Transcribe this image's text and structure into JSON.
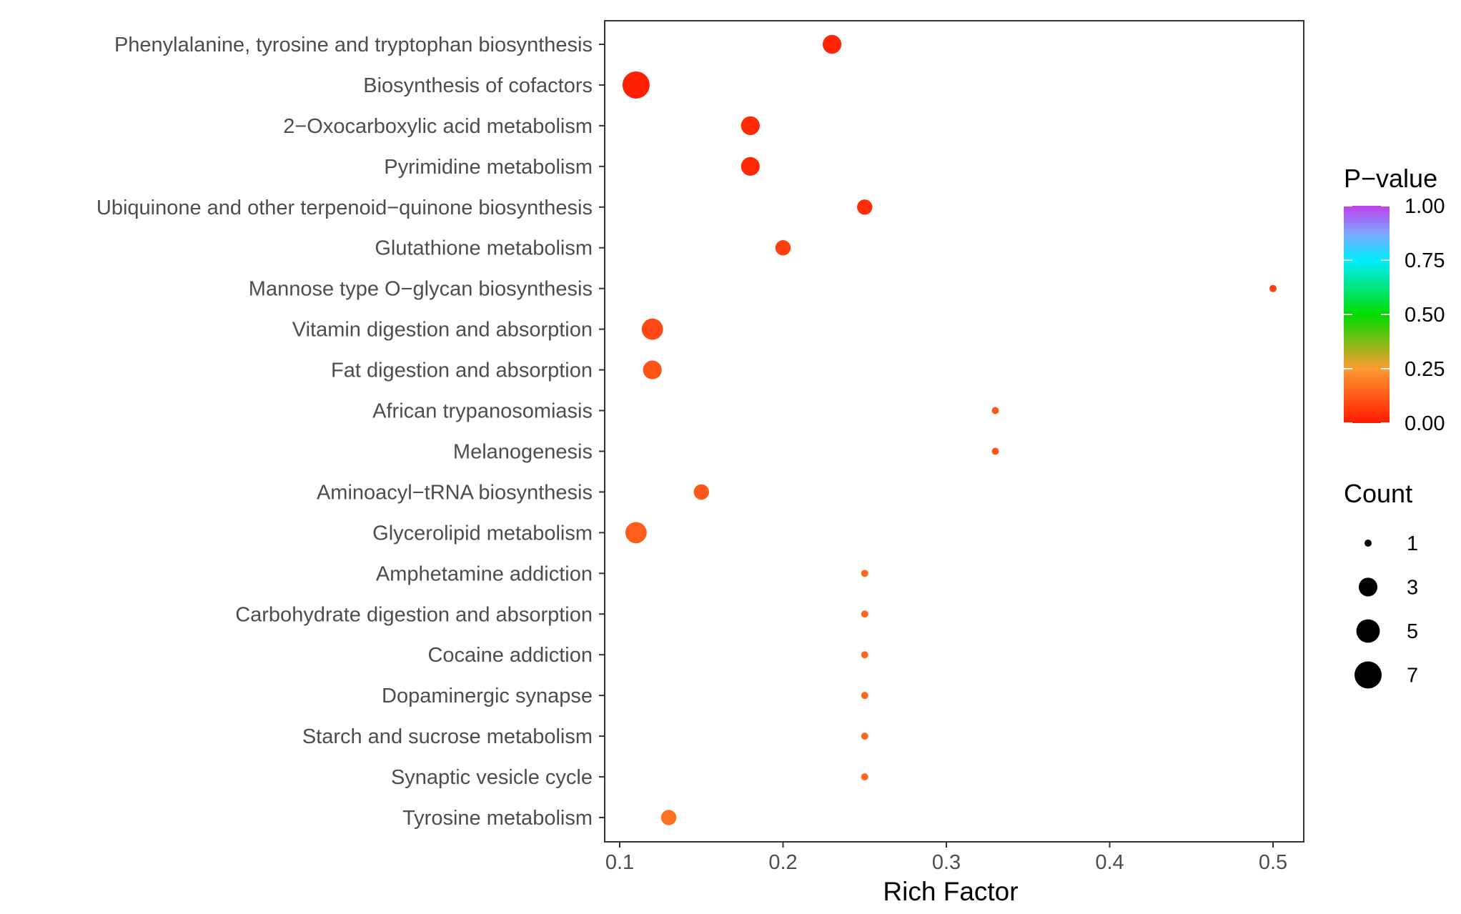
{
  "chart_data": {
    "type": "scatter",
    "title": "",
    "xlabel": "Rich Factor",
    "ylabel": "",
    "xlim": [
      0.092,
      0.52
    ],
    "xticks": [
      0.1,
      0.2,
      0.3,
      0.4,
      0.5
    ],
    "xtick_labels": [
      "0.1",
      "0.2",
      "0.3",
      "0.4",
      "0.5"
    ],
    "grid": false,
    "points": [
      {
        "pathway": "Phenylalanine, tyrosine and tryptophan biosynthesis",
        "rich_factor": 0.23,
        "count": 3,
        "p_value": 0.02
      },
      {
        "pathway": "Biosynthesis of cofactors",
        "rich_factor": 0.11,
        "count": 7,
        "p_value": 0.01
      },
      {
        "pathway": "2−Oxocarboxylic acid metabolism",
        "rich_factor": 0.18,
        "count": 3,
        "p_value": 0.03
      },
      {
        "pathway": "Pyrimidine metabolism",
        "rich_factor": 0.18,
        "count": 3,
        "p_value": 0.03
      },
      {
        "pathway": "Ubiquinone and other terpenoid−quinone biosynthesis",
        "rich_factor": 0.25,
        "count": 2,
        "p_value": 0.04
      },
      {
        "pathway": "Glutathione metabolism",
        "rich_factor": 0.2,
        "count": 2,
        "p_value": 0.07
      },
      {
        "pathway": "Mannose type O−glycan biosynthesis",
        "rich_factor": 0.5,
        "count": 1,
        "p_value": 0.08
      },
      {
        "pathway": "Vitamin digestion and absorption",
        "rich_factor": 0.12,
        "count": 4,
        "p_value": 0.09
      },
      {
        "pathway": "Fat digestion and absorption",
        "rich_factor": 0.12,
        "count": 3,
        "p_value": 0.11
      },
      {
        "pathway": "African trypanosomiasis",
        "rich_factor": 0.33,
        "count": 1,
        "p_value": 0.12
      },
      {
        "pathway": "Melanogenesis",
        "rich_factor": 0.33,
        "count": 1,
        "p_value": 0.12
      },
      {
        "pathway": "Aminoacyl−tRNA biosynthesis",
        "rich_factor": 0.15,
        "count": 2,
        "p_value": 0.12
      },
      {
        "pathway": "Glycerolipid metabolism",
        "rich_factor": 0.11,
        "count": 4,
        "p_value": 0.13
      },
      {
        "pathway": "Amphetamine addiction",
        "rich_factor": 0.25,
        "count": 1,
        "p_value": 0.15
      },
      {
        "pathway": "Carbohydrate digestion and absorption",
        "rich_factor": 0.25,
        "count": 1,
        "p_value": 0.15
      },
      {
        "pathway": "Cocaine addiction",
        "rich_factor": 0.25,
        "count": 1,
        "p_value": 0.15
      },
      {
        "pathway": "Dopaminergic synapse",
        "rich_factor": 0.25,
        "count": 1,
        "p_value": 0.15
      },
      {
        "pathway": "Starch and sucrose metabolism",
        "rich_factor": 0.25,
        "count": 1,
        "p_value": 0.15
      },
      {
        "pathway": "Synaptic vesicle cycle",
        "rich_factor": 0.25,
        "count": 1,
        "p_value": 0.15
      },
      {
        "pathway": "Tyrosine metabolism",
        "rich_factor": 0.13,
        "count": 2,
        "p_value": 0.17
      }
    ],
    "legend": {
      "placement": "right",
      "color": {
        "title": "P−value",
        "range": [
          0,
          1
        ],
        "ticks": [
          1.0,
          0.75,
          0.5,
          0.25,
          0.0
        ],
        "tick_labels": [
          "1.00",
          "0.75",
          "0.50",
          "0.25",
          "0.00"
        ],
        "stops": [
          {
            "value": 0.0,
            "color": "#ff1a00"
          },
          {
            "value": 0.25,
            "color": "#ff9a30"
          },
          {
            "value": 0.5,
            "color": "#00dd00"
          },
          {
            "value": 0.75,
            "color": "#00eeff"
          },
          {
            "value": 0.87,
            "color": "#7aa8ff"
          },
          {
            "value": 1.0,
            "color": "#c040ee"
          }
        ]
      },
      "size": {
        "title": "Count",
        "values": [
          1,
          3,
          5,
          7
        ],
        "labels": [
          "1",
          "3",
          "5",
          "7"
        ]
      }
    }
  }
}
